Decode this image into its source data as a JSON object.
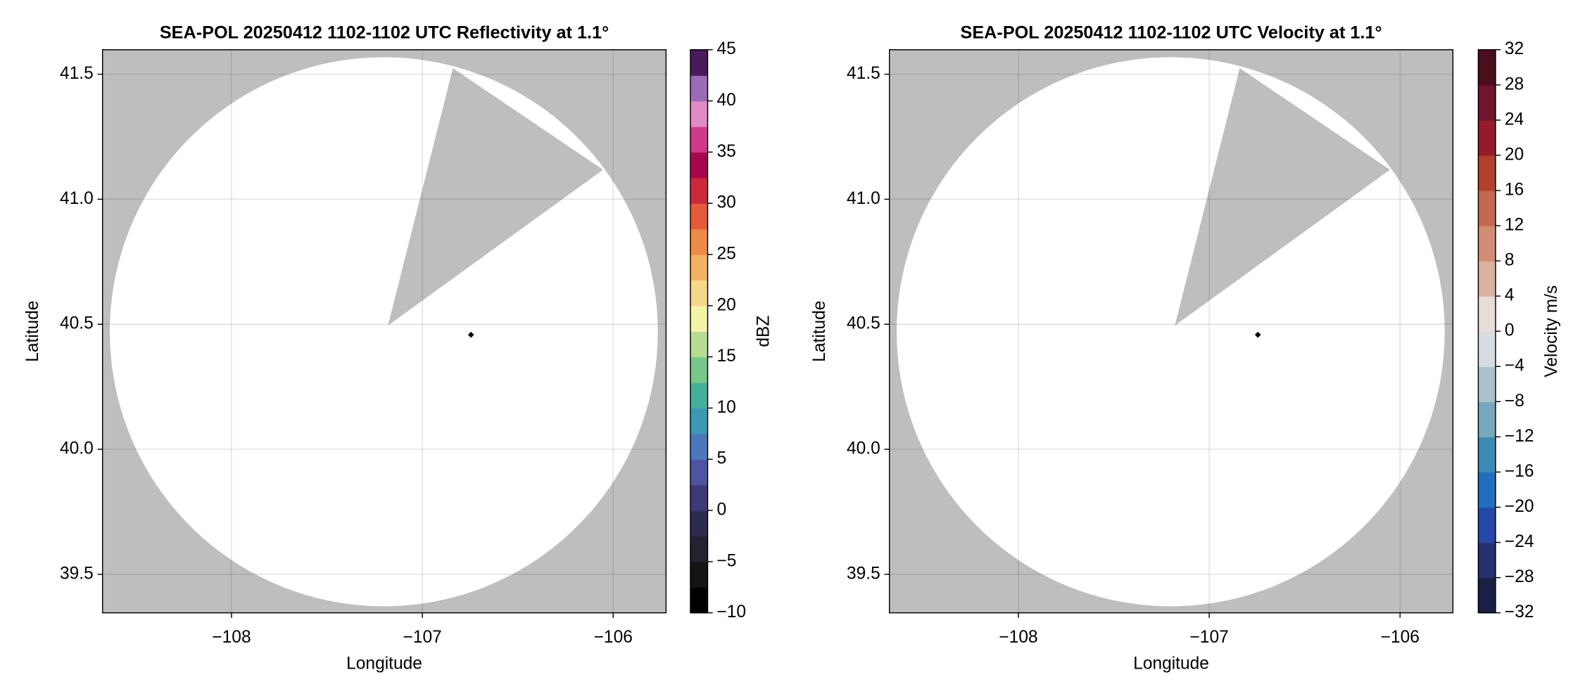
{
  "chart_data": [
    {
      "type": "radar-ppi",
      "title": "SEA-POL 20250412 1102-1102 UTC Reflectivity at 1.1°",
      "xlabel": "Longitude",
      "ylabel": "Latitude",
      "xlim": [
        -108.676,
        -105.723
      ],
      "ylim": [
        39.346,
        41.598
      ],
      "xticks": [
        {
          "value": -108,
          "label": "−108"
        },
        {
          "value": -107,
          "label": "−107"
        },
        {
          "value": -106,
          "label": "−106"
        }
      ],
      "yticks": [
        39.5,
        {
          "value": 40,
          "label": "40.0"
        },
        40.5,
        {
          "value": 41,
          "label": "41.0"
        },
        41.5
      ],
      "grid": true,
      "colorbar": {
        "label": "dBZ",
        "lim": [
          -10,
          45
        ],
        "ticks": [
          {
            "value": -10,
            "label": "−10"
          },
          {
            "value": -5,
            "label": "−5"
          },
          0,
          5,
          10,
          15,
          20,
          25,
          30,
          35,
          40,
          45
        ],
        "colors": [
          "#000000",
          "#141414",
          "#222230",
          "#2e2c4e",
          "#3c3a78",
          "#4d55a2",
          "#4a78ba",
          "#3a9ab3",
          "#45b09a",
          "#78c68a",
          "#b7dd95",
          "#f4f4a8",
          "#f6d88a",
          "#f3b262",
          "#ee8a45",
          "#e45a3a",
          "#cc2a3c",
          "#a8064f",
          "#d13a88",
          "#e18bc3",
          "#9a6bb8",
          "#4a1a5c"
        ]
      }
    },
    {
      "type": "radar-ppi",
      "title": "SEA-POL 20250412 1102-1102 UTC Velocity at 1.1°",
      "xlabel": "Longitude",
      "ylabel": "Latitude",
      "xlim": [
        -108.676,
        -105.723
      ],
      "ylim": [
        39.346,
        41.598
      ],
      "xticks": [
        {
          "value": -108,
          "label": "−108"
        },
        {
          "value": -107,
          "label": "−107"
        },
        {
          "value": -106,
          "label": "−106"
        }
      ],
      "yticks": [
        39.5,
        {
          "value": 40,
          "label": "40.0"
        },
        40.5,
        {
          "value": 41,
          "label": "41.0"
        },
        41.5
      ],
      "grid": true,
      "colorbar": {
        "label": "Velocity m/s",
        "lim": [
          -32,
          32
        ],
        "ticks": [
          {
            "value": -32,
            "label": "−32"
          },
          {
            "value": -28,
            "label": "−28"
          },
          {
            "value": -24,
            "label": "−24"
          },
          {
            "value": -20,
            "label": "−20"
          },
          {
            "value": -16,
            "label": "−16"
          },
          {
            "value": -12,
            "label": "−12"
          },
          {
            "value": -8,
            "label": "−8"
          },
          {
            "value": -4,
            "label": "−4"
          },
          0,
          4,
          8,
          12,
          16,
          20,
          24,
          28,
          32
        ],
        "colors": [
          "#1a1f45",
          "#25306e",
          "#2448a8",
          "#1f6fbe",
          "#3d8ab5",
          "#78a8bd",
          "#a9c2cb",
          "#d6dcdf",
          "#e8dcd8",
          "#ddb1a1",
          "#d08c75",
          "#c3694e",
          "#b1412d",
          "#951b2b",
          "#721330",
          "#4a0e1f"
        ]
      }
    }
  ]
}
